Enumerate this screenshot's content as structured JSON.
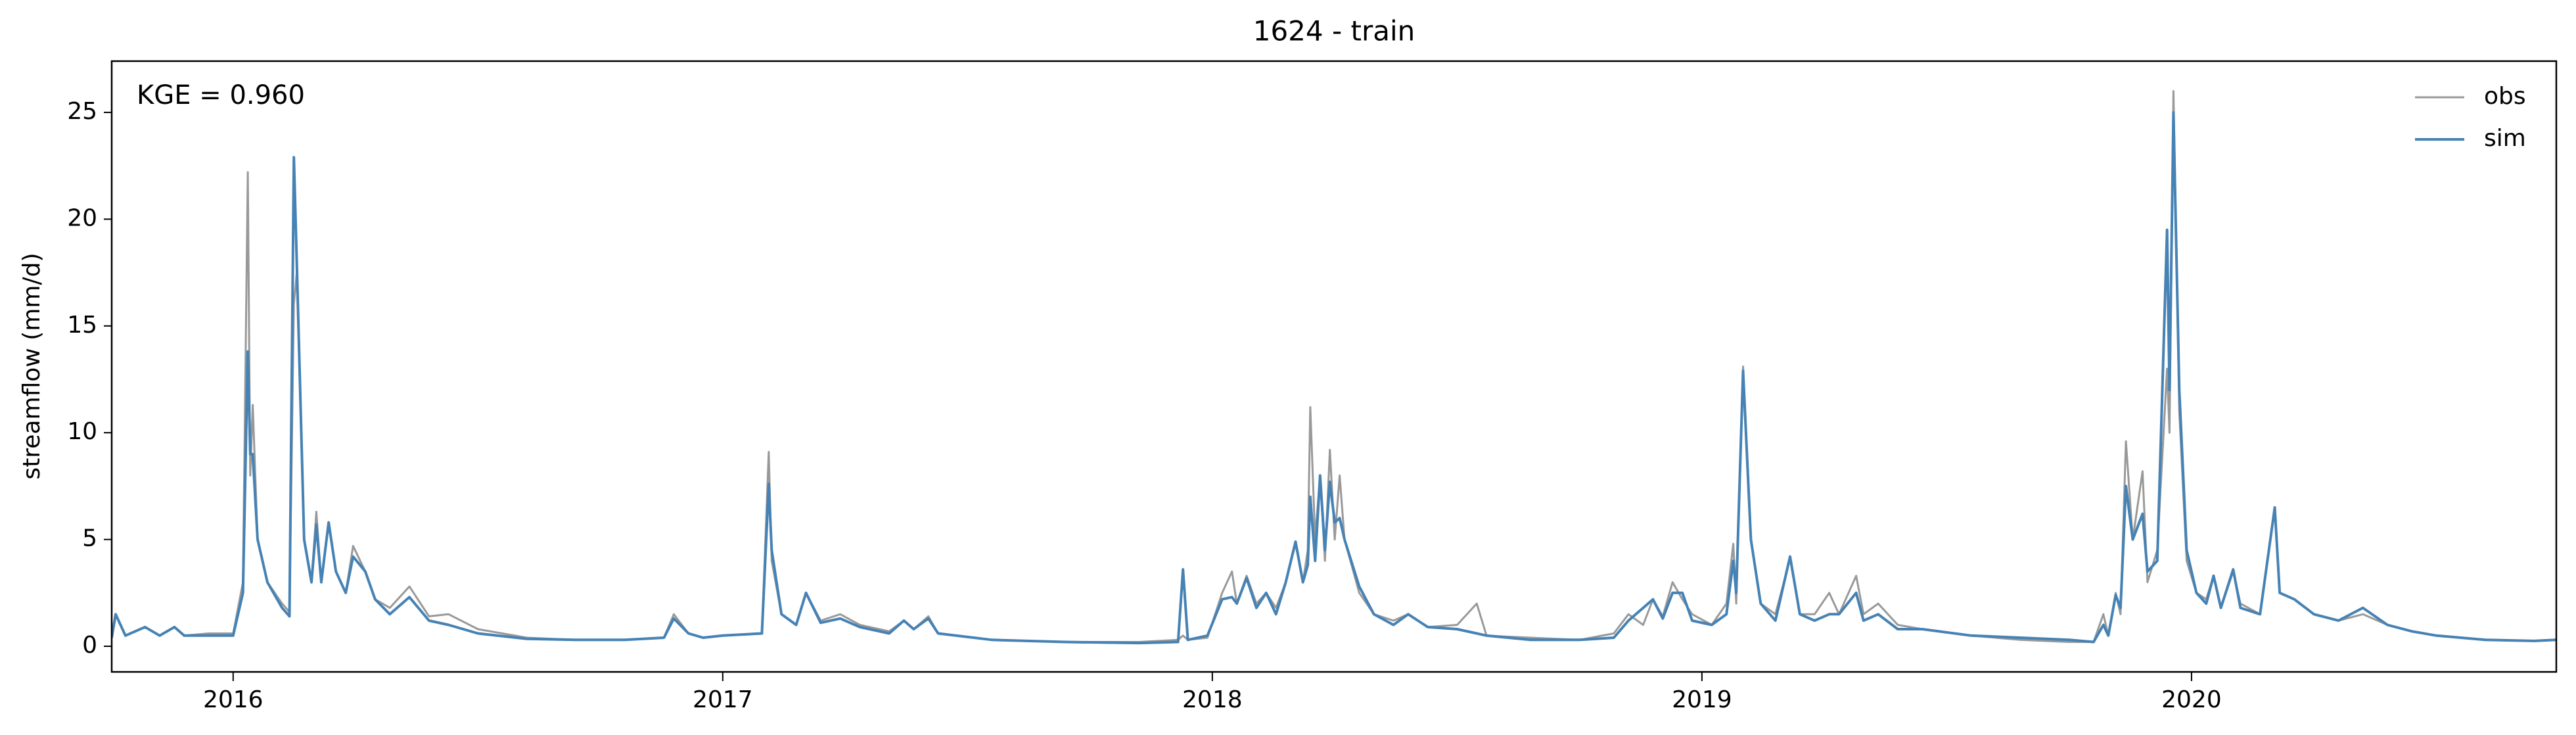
{
  "chart_data": {
    "type": "line",
    "title": "1624 - train",
    "ylabel": "streamflow (mm/d)",
    "annotation": "KGE = 0.960",
    "x": [
      2015.752,
      2015.76,
      2015.78,
      2015.82,
      2015.85,
      2015.88,
      2015.9,
      2015.95,
      2016.0,
      2016.02,
      2016.03,
      2016.035,
      2016.04,
      2016.05,
      2016.07,
      2016.1,
      2016.115,
      2016.124,
      2016.13,
      2016.145,
      2016.16,
      2016.17,
      2016.18,
      2016.195,
      2016.21,
      2016.23,
      2016.245,
      2016.27,
      2016.29,
      2016.32,
      2016.36,
      2016.4,
      2016.44,
      2016.5,
      2016.6,
      2016.7,
      2016.8,
      2016.88,
      2016.9,
      2016.93,
      2016.96,
      2017.0,
      2017.08,
      2017.094,
      2017.1,
      2017.12,
      2017.15,
      2017.17,
      2017.2,
      2017.24,
      2017.28,
      2017.34,
      2017.37,
      2017.39,
      2017.42,
      2017.44,
      2017.55,
      2017.7,
      2017.85,
      2017.93,
      2017.94,
      2017.95,
      2017.99,
      2018.02,
      2018.04,
      2018.05,
      2018.07,
      2018.09,
      2018.11,
      2018.13,
      2018.15,
      2018.17,
      2018.185,
      2018.195,
      2018.2,
      2018.21,
      2018.22,
      2018.23,
      2018.24,
      2018.25,
      2018.26,
      2018.27,
      2018.3,
      2018.33,
      2018.37,
      2018.4,
      2018.44,
      2018.5,
      2018.54,
      2018.56,
      2018.65,
      2018.75,
      2018.82,
      2018.85,
      2018.88,
      2018.9,
      2018.92,
      2018.94,
      2018.96,
      2018.98,
      2019.02,
      2019.05,
      2019.064,
      2019.07,
      2019.084,
      2019.1,
      2019.12,
      2019.15,
      2019.18,
      2019.2,
      2019.23,
      2019.26,
      2019.28,
      2019.315,
      2019.33,
      2019.36,
      2019.4,
      2019.45,
      2019.55,
      2019.65,
      2019.75,
      2019.8,
      2019.82,
      2019.83,
      2019.845,
      2019.855,
      2019.866,
      2019.88,
      2019.9,
      2019.91,
      2019.93,
      2019.95,
      2019.955,
      2019.963,
      2019.975,
      2019.99,
      2020.01,
      2020.03,
      2020.045,
      2020.06,
      2020.085,
      2020.1,
      2020.14,
      2020.17,
      2020.18,
      2020.21,
      2020.25,
      2020.3,
      2020.35,
      2020.4,
      2020.45,
      2020.5,
      2020.6,
      2020.7,
      2020.745
    ],
    "series": [
      {
        "name": "obs",
        "color": "#999999",
        "values": [
          0.5,
          1.5,
          0.5,
          0.9,
          0.5,
          0.9,
          0.5,
          0.6,
          0.6,
          3.0,
          22.2,
          8,
          11.3,
          5,
          3,
          2,
          1.6,
          16,
          17.5,
          5,
          3,
          6.3,
          3,
          5.8,
          3.5,
          2.5,
          4.7,
          3.5,
          2.2,
          1.8,
          2.8,
          1.4,
          1.5,
          0.8,
          0.4,
          0.3,
          0.3,
          0.4,
          1.5,
          0.6,
          0.4,
          0.5,
          0.6,
          9.1,
          4,
          1.5,
          1,
          2.5,
          1.2,
          1.5,
          1,
          0.7,
          1.2,
          0.8,
          1.4,
          0.6,
          0.3,
          0.2,
          0.2,
          0.3,
          0.5,
          0.3,
          0.4,
          2.5,
          3.5,
          2,
          3.3,
          2,
          2.5,
          1.8,
          3,
          4.8,
          3,
          4.5,
          11.2,
          5,
          8,
          4,
          9.2,
          5,
          8,
          5,
          2.5,
          1.5,
          1.2,
          1.5,
          0.9,
          1,
          2,
          0.5,
          0.4,
          0.3,
          0.6,
          1.5,
          1,
          2.2,
          1.4,
          3,
          2.2,
          1.5,
          1,
          2,
          4.8,
          2,
          13.1,
          5,
          2,
          1.5,
          4.1,
          1.5,
          1.5,
          2.5,
          1.5,
          3.3,
          1.5,
          2,
          1,
          0.8,
          0.5,
          0.3,
          0.2,
          0.2,
          1.5,
          0.5,
          2.5,
          1.5,
          9.6,
          5,
          8.2,
          3,
          4.5,
          13,
          10,
          26,
          11,
          4,
          2.5,
          2.2,
          3.3,
          1.8,
          3.5,
          2,
          1.5,
          6.5,
          2.5,
          2.2,
          1.5,
          1.2,
          1.5,
          1,
          0.7,
          0.5,
          0.3,
          0.25,
          0.3
        ]
      },
      {
        "name": "sim",
        "color": "#4682b4",
        "values": [
          0.4,
          1.5,
          0.5,
          0.9,
          0.5,
          0.9,
          0.5,
          0.5,
          0.5,
          2.5,
          13.8,
          9,
          9,
          5,
          3,
          1.8,
          1.4,
          22.9,
          18,
          5,
          3,
          5.7,
          3,
          5.8,
          3.5,
          2.5,
          4.2,
          3.5,
          2.2,
          1.5,
          2.3,
          1.2,
          1.0,
          0.6,
          0.35,
          0.3,
          0.3,
          0.4,
          1.3,
          0.6,
          0.4,
          0.5,
          0.6,
          7.6,
          4.5,
          1.5,
          1,
          2.5,
          1.1,
          1.3,
          0.9,
          0.6,
          1.2,
          0.8,
          1.3,
          0.6,
          0.3,
          0.2,
          0.15,
          0.2,
          3.6,
          0.3,
          0.5,
          2.2,
          2.3,
          2,
          3.2,
          1.8,
          2.5,
          1.5,
          3,
          4.9,
          3,
          3.8,
          7,
          4,
          8,
          4.5,
          7.7,
          5.8,
          6,
          5,
          2.8,
          1.5,
          1.0,
          1.5,
          0.9,
          0.8,
          0.6,
          0.5,
          0.3,
          0.3,
          0.4,
          1.2,
          1.8,
          2.2,
          1.3,
          2.5,
          2.5,
          1.2,
          1,
          1.5,
          4,
          2.5,
          12.9,
          5,
          2,
          1.2,
          4.2,
          1.5,
          1.2,
          1.5,
          1.5,
          2.5,
          1.2,
          1.5,
          0.8,
          0.8,
          0.5,
          0.4,
          0.3,
          0.2,
          1,
          0.5,
          2.4,
          1.8,
          7.5,
          5,
          6.2,
          3.5,
          4,
          19.5,
          12,
          25,
          12,
          4.5,
          2.5,
          2,
          3.3,
          1.8,
          3.6,
          1.8,
          1.5,
          6.5,
          2.5,
          2.2,
          1.5,
          1.2,
          1.8,
          1,
          0.7,
          0.5,
          0.3,
          0.25,
          0.3
        ]
      }
    ],
    "xlim": [
      2015.752,
      2020.745
    ],
    "xticks": [
      2016,
      2017,
      2018,
      2019,
      2020
    ],
    "ylim": [
      -1.2,
      27.4
    ],
    "yticks": [
      0,
      5,
      10,
      15,
      20,
      25
    ],
    "grid": false,
    "legend": "upper right"
  }
}
